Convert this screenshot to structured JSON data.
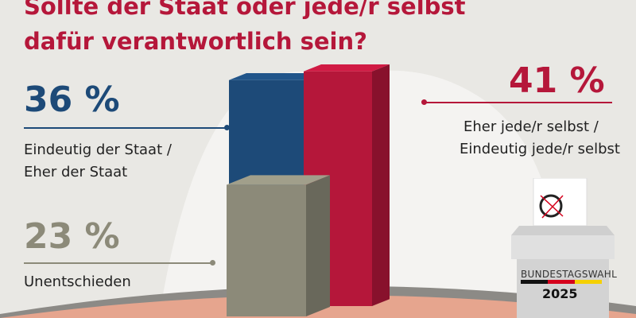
{
  "title": "Sollte der Staat oder jede/r selbst dafür verantwortlich sein?",
  "chart_data": {
    "type": "bar",
    "categories": [
      "Eindeutig der Staat / Eher der Staat",
      "Eher jede/r selbst / Eindeutig jede/r selbst",
      "Unentschieden"
    ],
    "values": [
      36,
      41,
      23
    ],
    "value_labels": [
      "36 %",
      "41 %",
      "23 %"
    ],
    "colors": [
      "#1d4a78",
      "#b5173a",
      "#8c8a79"
    ],
    "unit": "%"
  },
  "labels": {
    "staat_pct": "36 %",
    "staat_l1": "Eindeutig der Staat /",
    "staat_l2": "Eher der Staat",
    "selbst_pct": "41 %",
    "selbst_l1": "Eher jede/r selbst /",
    "selbst_l2": "Eindeutig jede/r selbst",
    "unent_pct": "23 %",
    "unent_l1": "Unentschieden"
  },
  "ballot": {
    "label": "BUNDESTAGSWAHL",
    "year": "2025",
    "flag_colors": [
      "#111111",
      "#d5001c",
      "#f5d000"
    ]
  }
}
